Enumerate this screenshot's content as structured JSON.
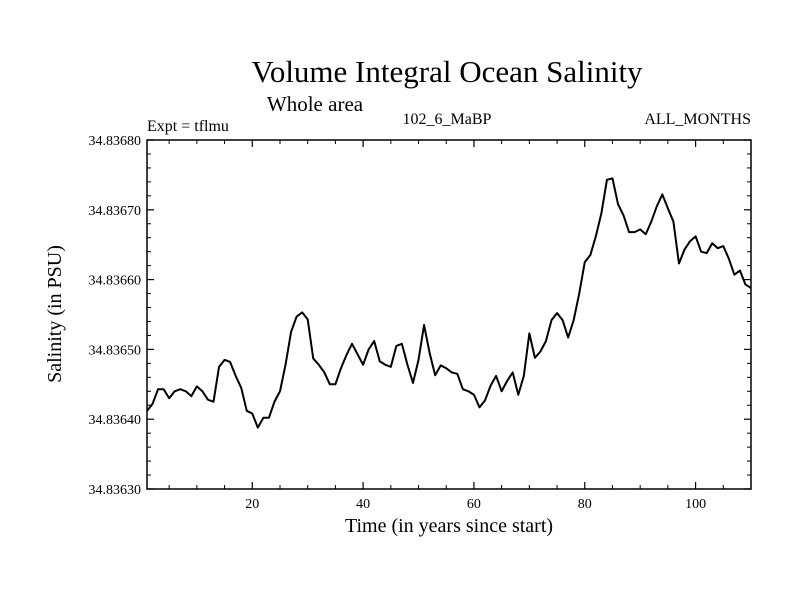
{
  "chart_data": {
    "type": "line",
    "title": "Volume Integral Ocean Salinity",
    "subtitle": "Whole area",
    "experiment_label": "Expt = tflmu",
    "run_label": "102_6_MaBP",
    "months_label": "ALL_MONTHS",
    "xlabel": "Time (in years since start)",
    "ylabel": "Salinity (in PSU)",
    "xlim": [
      1,
      110
    ],
    "ylim": [
      34.8363,
      34.8368
    ],
    "xticks": [
      20,
      40,
      60,
      80,
      100
    ],
    "xtick_labels": [
      "20",
      "40",
      "60",
      "80",
      "100"
    ],
    "yticks": [
      34.8363,
      34.8364,
      34.8365,
      34.8366,
      34.8367,
      34.8368
    ],
    "ytick_labels": [
      "34.83630",
      "34.83640",
      "34.83650",
      "34.83660",
      "34.83670",
      "34.83680"
    ],
    "grid": false,
    "series": [
      {
        "name": "salinity",
        "color": "#000000",
        "x": [
          1,
          2,
          3,
          4,
          5,
          6,
          7,
          8,
          9,
          10,
          11,
          12,
          13,
          14,
          15,
          16,
          17,
          18,
          19,
          20,
          21,
          22,
          23,
          24,
          25,
          26,
          27,
          28,
          29,
          30,
          31,
          32,
          33,
          34,
          35,
          36,
          37,
          38,
          39,
          40,
          41,
          42,
          43,
          44,
          45,
          46,
          47,
          48,
          49,
          50,
          51,
          52,
          53,
          54,
          55,
          56,
          57,
          58,
          59,
          60,
          61,
          62,
          63,
          64,
          65,
          66,
          67,
          68,
          69,
          70,
          71,
          72,
          73,
          74,
          75,
          76,
          77,
          78,
          79,
          80,
          81,
          82,
          83,
          84,
          85,
          86,
          87,
          88,
          89,
          90,
          91,
          92,
          93,
          94,
          95,
          96,
          97,
          98,
          99,
          100,
          101,
          102,
          103,
          104,
          105,
          106,
          107,
          108,
          109,
          110
        ],
        "values": [
          34.836412,
          34.836422,
          34.836443,
          34.836443,
          34.83643,
          34.83644,
          34.836443,
          34.83644,
          34.836433,
          34.836447,
          34.83644,
          34.836428,
          34.836425,
          34.836475,
          34.836485,
          34.836482,
          34.836462,
          34.836445,
          34.836412,
          34.836408,
          34.836388,
          34.836402,
          34.836402,
          34.836425,
          34.83644,
          34.836478,
          34.836525,
          34.836547,
          34.836553,
          34.836543,
          34.836487,
          34.836478,
          34.836467,
          34.83645,
          34.83645,
          34.836473,
          34.836492,
          34.836508,
          34.836493,
          34.836478,
          34.8365,
          34.836512,
          34.836483,
          34.836478,
          34.836475,
          34.836505,
          34.836508,
          34.836478,
          34.836452,
          34.836485,
          34.836535,
          34.836495,
          34.836463,
          34.836477,
          34.836473,
          34.836467,
          34.836465,
          34.836443,
          34.83644,
          34.836435,
          34.836417,
          34.836427,
          34.836448,
          34.836462,
          34.83644,
          34.836455,
          34.836467,
          34.836435,
          34.836462,
          34.836523,
          34.836488,
          34.836497,
          34.836512,
          34.836542,
          34.836552,
          34.836542,
          34.836517,
          34.836542,
          34.83658,
          34.836625,
          34.836635,
          34.836662,
          34.836695,
          34.836743,
          34.836745,
          34.836708,
          34.836692,
          34.836668,
          34.836668,
          34.836672,
          34.836665,
          34.836683,
          34.836705,
          34.836722,
          34.836702,
          34.836683,
          34.836623,
          34.836643,
          34.836655,
          34.836662,
          34.83664,
          34.836638,
          34.836652,
          34.836645,
          34.836648,
          34.83663,
          34.836607,
          34.836613,
          34.836593,
          34.836588
        ]
      }
    ]
  }
}
